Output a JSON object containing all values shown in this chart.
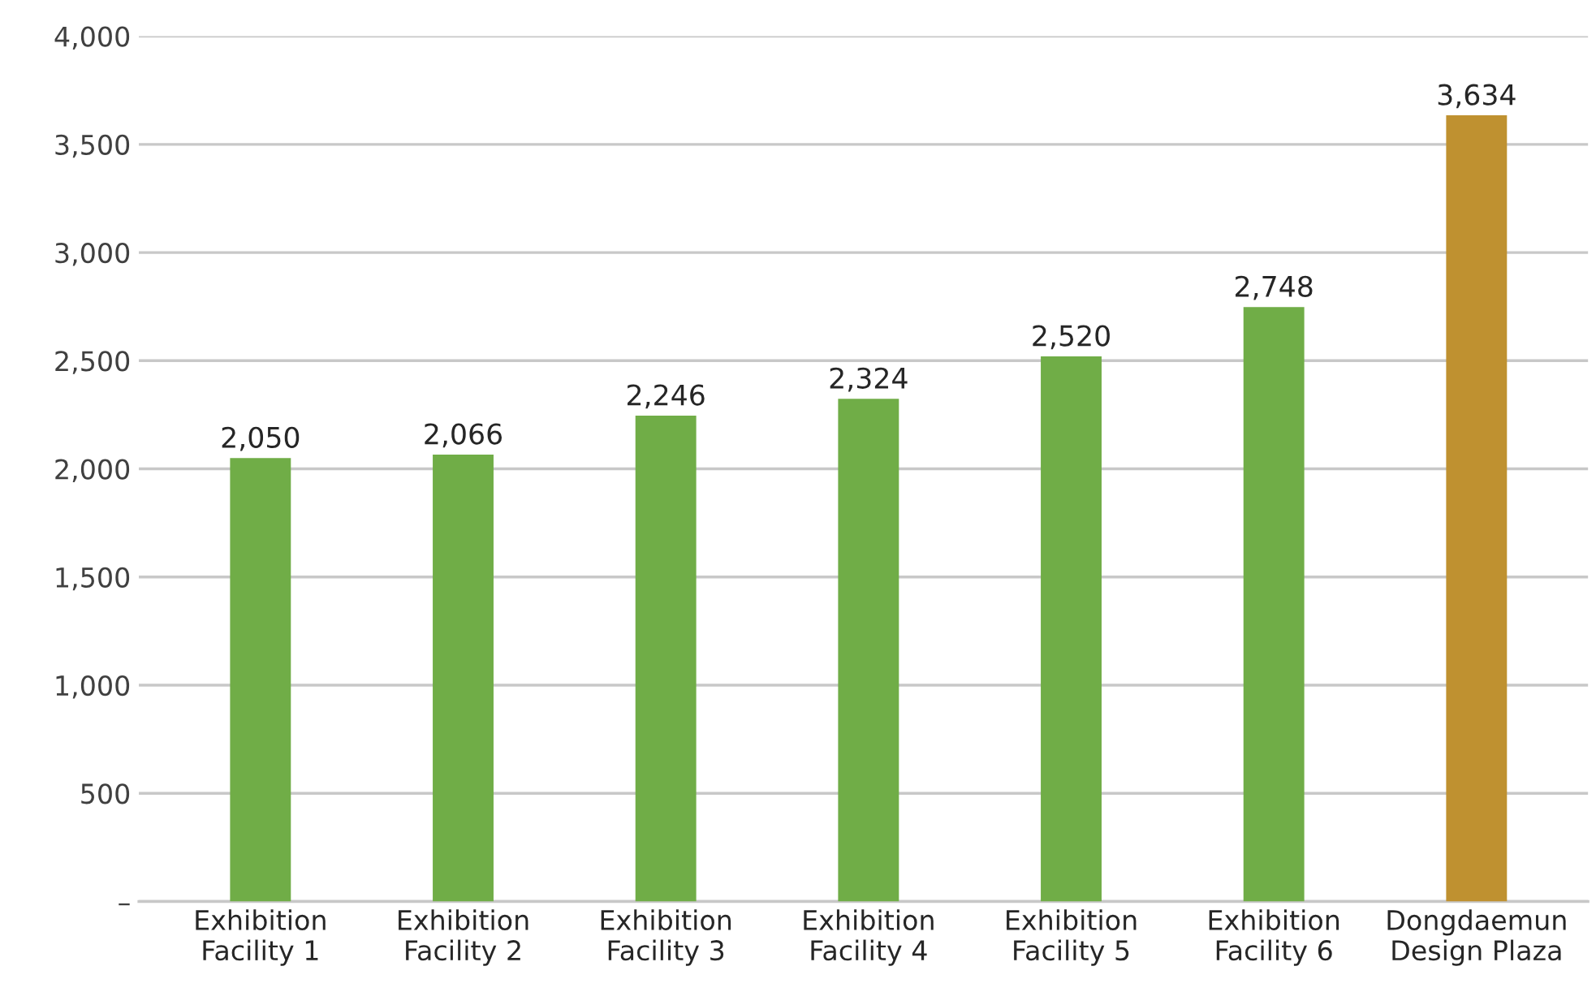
{
  "chart_data": {
    "type": "bar",
    "categories": [
      "Exhibition\nFacility 1",
      "Exhibition\nFacility 2",
      "Exhibition\nFacility 3",
      "Exhibition\nFacility 4",
      "Exhibition\nFacility 5",
      "Exhibition\nFacility 6",
      "Dongdaemun\nDesign Plaza"
    ],
    "values": [
      2050,
      2066,
      2246,
      2324,
      2520,
      2748,
      3634
    ],
    "colors": [
      "#70ad47",
      "#70ad47",
      "#70ad47",
      "#70ad47",
      "#70ad47",
      "#70ad47",
      "#bf9130"
    ],
    "value_labels": [
      "2,050",
      "2,066",
      "2,246",
      "2,324",
      "2,520",
      "2,748",
      "3,634"
    ],
    "ylim": [
      0,
      4000
    ],
    "yticks": [
      {
        "value": 0,
        "label": "–"
      },
      {
        "value": 500,
        "label": "500"
      },
      {
        "value": 1000,
        "label": "1,000"
      },
      {
        "value": 1500,
        "label": "1,500"
      },
      {
        "value": 2000,
        "label": "2,000"
      },
      {
        "value": 2500,
        "label": "2,500"
      },
      {
        "value": 3000,
        "label": "3,000"
      },
      {
        "value": 3500,
        "label": "3,500"
      },
      {
        "value": 4000,
        "label": "4,000"
      }
    ],
    "grid": "y",
    "legend": false
  }
}
